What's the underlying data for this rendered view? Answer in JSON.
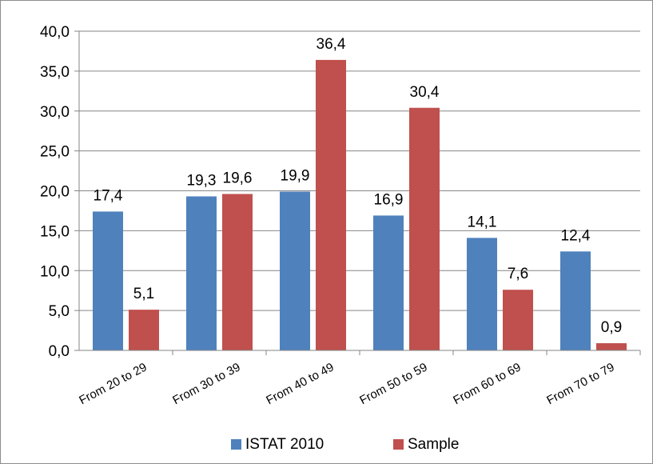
{
  "chart_data": {
    "type": "bar",
    "categories": [
      "From 20 to 29",
      "From 30 to 39",
      "From 40 to 49",
      "From 50 to 59",
      "From 60 to 69",
      "From 70 to 79"
    ],
    "series": [
      {
        "name": "ISTAT 2010",
        "color": "#4f81bd",
        "values": [
          17.4,
          19.3,
          19.9,
          16.9,
          14.1,
          12.4
        ],
        "value_labels": [
          "17,4",
          "19,3",
          "19,9",
          "16,9",
          "14,1",
          "12,4"
        ]
      },
      {
        "name": "Sample",
        "color": "#c0504d",
        "values": [
          5.1,
          19.6,
          36.4,
          30.4,
          7.6,
          0.9
        ],
        "value_labels": [
          "5,1",
          "19,6",
          "36,4",
          "30,4",
          "7,6",
          "0,9"
        ]
      }
    ],
    "ylim": [
      0,
      40
    ],
    "yticks": [
      0,
      5,
      10,
      15,
      20,
      25,
      30,
      35,
      40
    ],
    "ytick_labels": [
      "0,0",
      "5,0",
      "10,0",
      "15,0",
      "20,0",
      "25,0",
      "30,0",
      "35,0",
      "40,0"
    ],
    "grid": true,
    "legend_position": "bottom",
    "title": "",
    "xlabel": "",
    "ylabel": ""
  }
}
